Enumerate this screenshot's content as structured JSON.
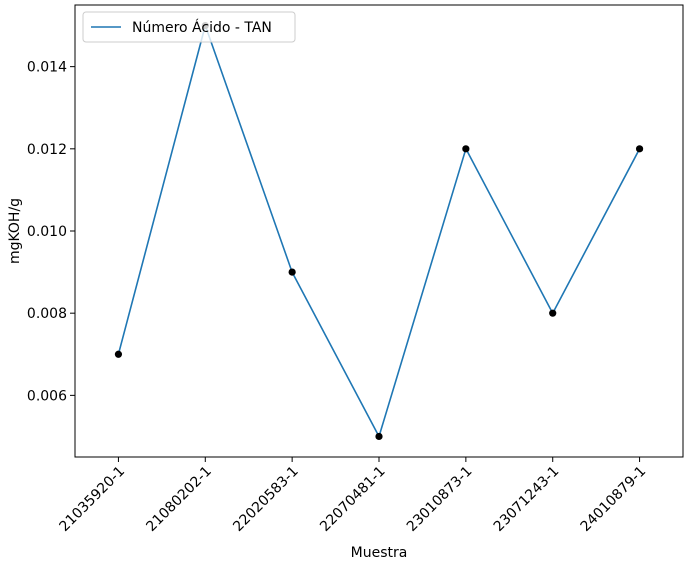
{
  "chart_data": {
    "type": "line",
    "title": "",
    "xlabel": "Muestra",
    "ylabel": "mgKOH/g",
    "categories": [
      "21035920-1",
      "21080202-1",
      "22020583-1",
      "22070481-1",
      "23010873-1",
      "23071243-1",
      "24010879-1"
    ],
    "series": [
      {
        "name": "Número Ácido - TAN",
        "values": [
          0.007,
          0.015,
          0.009,
          0.005,
          0.012,
          0.008,
          0.012
        ],
        "line_color": "#1f77b4",
        "marker_color": "#000000"
      }
    ],
    "ylim": [
      0.0045,
      0.0155
    ],
    "yticks": [
      0.006,
      0.008,
      0.01,
      0.012,
      0.014
    ],
    "ytick_labels": [
      "0.006",
      "0.008",
      "0.010",
      "0.012",
      "0.014"
    ],
    "grid": false,
    "legend_position": "top-left"
  }
}
